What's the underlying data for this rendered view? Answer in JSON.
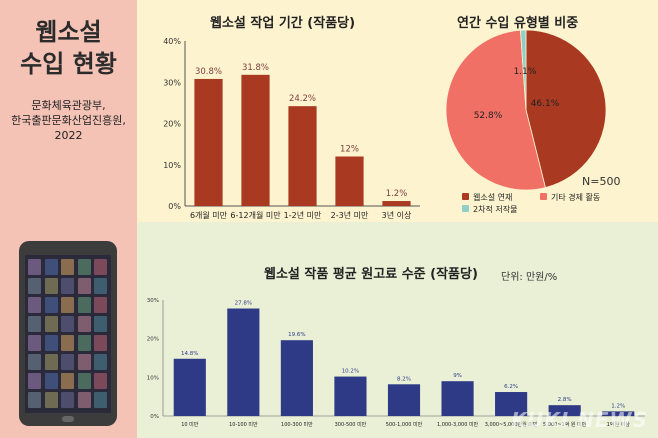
{
  "infographic": {
    "title_line1": "웹소설",
    "title_line2": "수입 현황",
    "source_line1": "문화체육관광부,",
    "source_line2": "한국출판문화산업진흥원,",
    "source_line3": "2022",
    "watermark": "KUKI NEWS"
  },
  "colors": {
    "bar_brown": "#a93a21",
    "bar_navy": "#2f3a86",
    "pie_webnovel": "#a93a21",
    "pie_other": "#f07065",
    "pie_secondary": "#8fcfc8"
  },
  "chart_data": [
    {
      "type": "bar",
      "title": "웹소설 작업 기간 (작품당)",
      "categories": [
        "6개월 미만",
        "6-12개월 미만",
        "1-2년 미만",
        "2-3년 미만",
        "3년 이상"
      ],
      "values": [
        30.8,
        31.8,
        24.2,
        12,
        1.2
      ],
      "data_labels": [
        "30.8%",
        "31.8%",
        "24.2%",
        "12%",
        "1.2%"
      ],
      "ylim": [
        0,
        40
      ],
      "yticks": [
        "0%",
        "10%",
        "20%",
        "30%",
        "40%"
      ]
    },
    {
      "type": "pie",
      "title": "연간 수입 유형별 비중",
      "note": "N=500",
      "categories": [
        "웹소설 연재",
        "기타 경제 활동",
        "2차적 저작물"
      ],
      "values": [
        46.1,
        52.8,
        1.1
      ],
      "data_labels": [
        "46.1%",
        "52.8%",
        "1.1%"
      ],
      "legend": "bottom"
    },
    {
      "type": "bar",
      "title": "웹소설 작품 평균 원고료 수준 (작품당)",
      "unit_note": "단위: 만원/%",
      "categories": [
        "10 미만",
        "10-100 미만",
        "100-300 미만",
        "300-500 미만",
        "500-1,000 미만",
        "1,000-3,000 미만",
        "3,000~5,000만원 미만",
        "5,000~1억 원 미만",
        "1억원 이상"
      ],
      "values": [
        14.8,
        27.8,
        19.6,
        10.2,
        8.2,
        9,
        6.2,
        2.8,
        1.2
      ],
      "data_labels": [
        "14.8%",
        "27.8%",
        "19.6%",
        "10.2%",
        "8.2%",
        "9%",
        "6.2%",
        "2.8%",
        "1.2%"
      ],
      "ylim": [
        0,
        30
      ],
      "yticks": [
        "0%",
        "10%",
        "20%",
        "30%"
      ]
    }
  ]
}
